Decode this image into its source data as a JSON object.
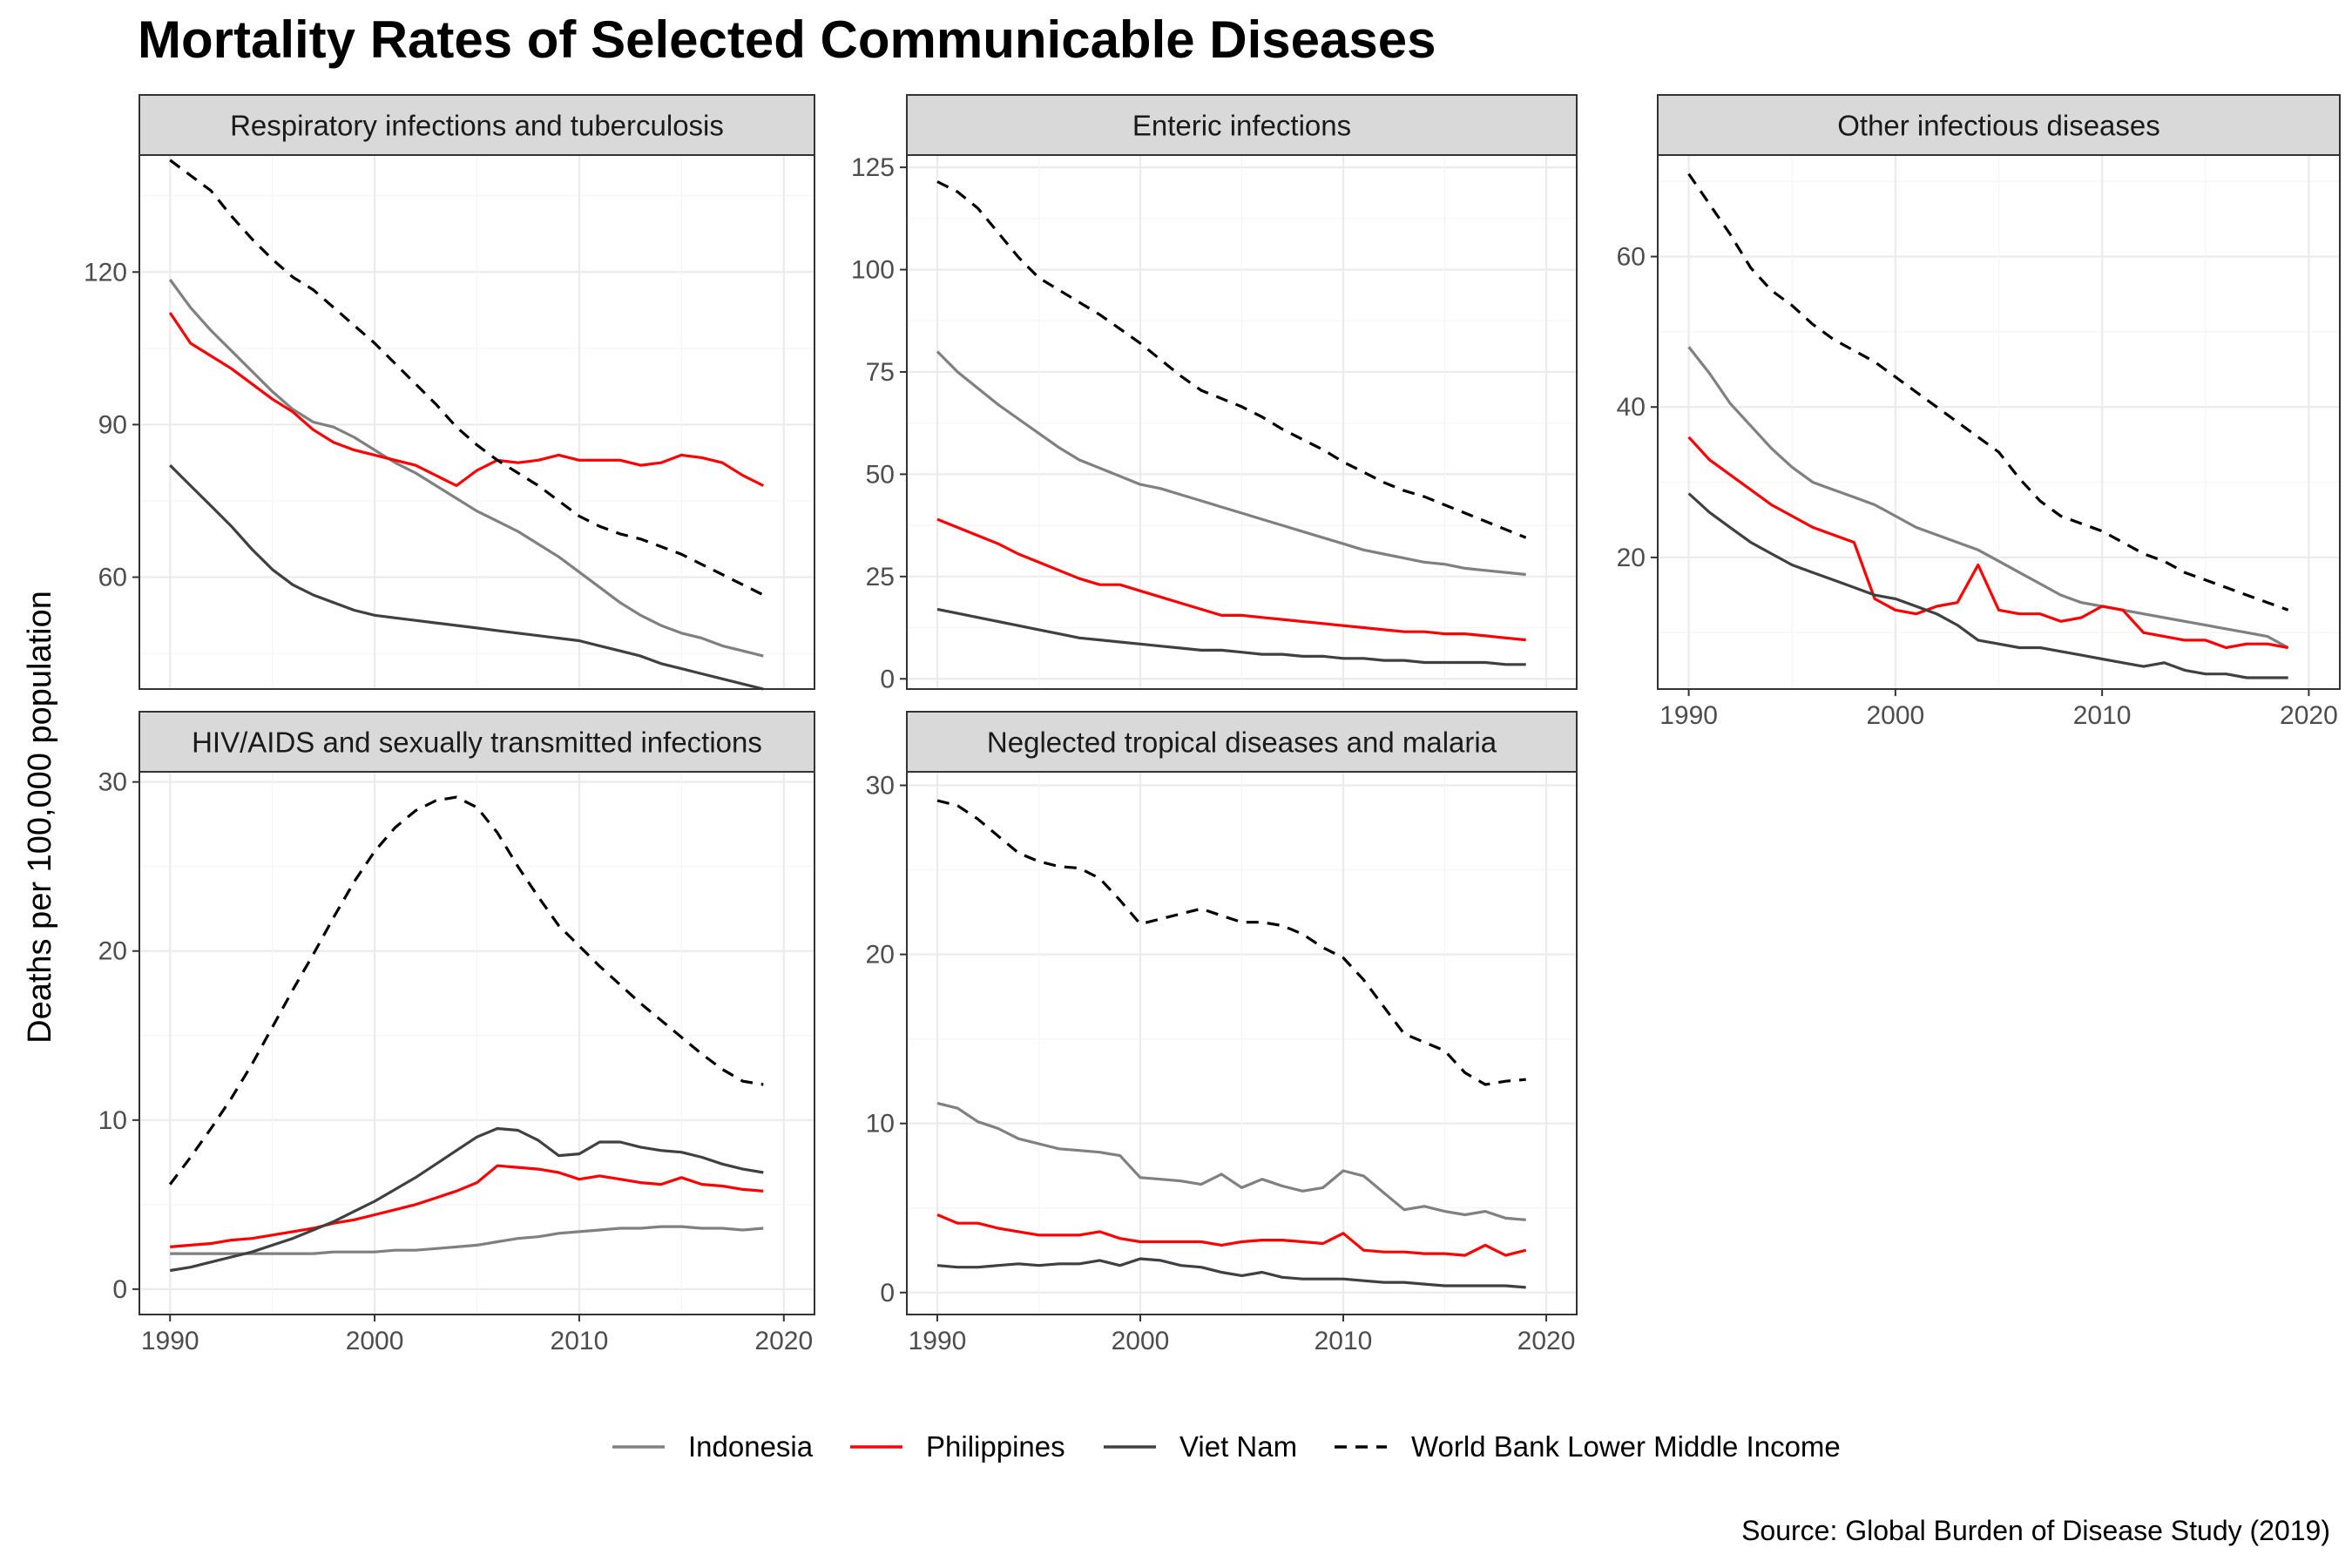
{
  "title": "Mortality Rates of Selected Communicable Diseases",
  "ylabel": "Deaths per 100,000 population",
  "caption": "Source: Global Burden of Disease Study (2019)",
  "colors": {
    "Indonesia": "#808080",
    "Philippines": "#ff0000",
    "Viet Nam": "#404040",
    "World Bank Lower Middle Income": "#000000"
  },
  "legend": [
    {
      "label": "Indonesia",
      "style": "solid"
    },
    {
      "label": "Philippines",
      "style": "solid"
    },
    {
      "label": "Viet Nam",
      "style": "solid"
    },
    {
      "label": "World Bank Lower Middle Income",
      "style": "dashed"
    }
  ],
  "chart_data": [
    {
      "type": "line",
      "title": "Respiratory infections and tuberculosis",
      "x_ticks": [
        "1990",
        "2000",
        "2010",
        "2020"
      ],
      "xlim": [
        1988.5,
        2021.5
      ],
      "ylim": [
        38,
        143
      ],
      "y_ticks": [
        60,
        90,
        120
      ],
      "grid": true,
      "x": [
        1990,
        1991,
        1992,
        1993,
        1994,
        1995,
        1996,
        1997,
        1998,
        1999,
        2000,
        2001,
        2002,
        2003,
        2004,
        2005,
        2006,
        2007,
        2008,
        2009,
        2010,
        2011,
        2012,
        2013,
        2014,
        2015,
        2016,
        2017,
        2018,
        2019
      ],
      "series": [
        {
          "name": "Indonesia",
          "values": [
            118.5,
            113,
            108.5,
            104.5,
            100.5,
            96.5,
            93,
            90.5,
            89.5,
            87.5,
            85,
            82.5,
            80.5,
            78,
            75.5,
            73,
            71,
            69,
            66.5,
            64,
            61,
            58,
            55,
            52.5,
            50.5,
            49,
            48,
            46.5,
            45.5,
            44.5
          ]
        },
        {
          "name": "Philippines",
          "values": [
            112,
            106,
            103.5,
            101,
            98,
            95,
            92.5,
            89,
            86.5,
            85,
            84,
            83,
            82,
            80,
            78,
            81,
            83,
            82.5,
            83,
            84,
            83,
            83,
            83,
            82,
            82.5,
            84,
            83.5,
            82.5,
            80,
            78
          ]
        },
        {
          "name": "Viet Nam",
          "values": [
            82,
            78,
            74,
            70,
            65.5,
            61.5,
            58.5,
            56.5,
            55,
            53.5,
            52.5,
            52,
            51.5,
            51,
            50.5,
            50,
            49.5,
            49,
            48.5,
            48,
            47.5,
            46.5,
            45.5,
            44.5,
            43,
            42,
            41,
            40,
            39,
            38
          ]
        },
        {
          "name": "World Bank Lower Middle Income",
          "values": [
            142,
            139,
            136,
            131,
            126.5,
            122.5,
            119,
            116.5,
            113,
            109.5,
            106,
            102,
            98,
            94,
            89.5,
            86,
            83,
            80.5,
            78,
            75,
            72,
            70,
            68.5,
            67.5,
            66,
            64.5,
            62.5,
            60.5,
            58.5,
            56.5
          ]
        }
      ]
    },
    {
      "type": "line",
      "title": "Enteric infections",
      "x_ticks": [
        "1990",
        "2000",
        "2010",
        "2020"
      ],
      "xlim": [
        1988.5,
        2021.5
      ],
      "ylim": [
        -2.5,
        128
      ],
      "y_ticks": [
        0,
        25,
        50,
        75,
        100,
        125
      ],
      "grid": true,
      "x": [
        1990,
        1991,
        1992,
        1993,
        1994,
        1995,
        1996,
        1997,
        1998,
        1999,
        2000,
        2001,
        2002,
        2003,
        2004,
        2005,
        2006,
        2007,
        2008,
        2009,
        2010,
        2011,
        2012,
        2013,
        2014,
        2015,
        2016,
        2017,
        2018,
        2019
      ],
      "series": [
        {
          "name": "Indonesia",
          "values": [
            80,
            75,
            71,
            67,
            63.5,
            60,
            56.5,
            53.5,
            51.5,
            49.5,
            47.5,
            46.5,
            45,
            43.5,
            42,
            40.5,
            39,
            37.5,
            36,
            34.5,
            33,
            31.5,
            30.5,
            29.5,
            28.5,
            28,
            27,
            26.5,
            26,
            25.5
          ]
        },
        {
          "name": "Philippines",
          "values": [
            39,
            37,
            35,
            33,
            30.5,
            28.5,
            26.5,
            24.5,
            23,
            23,
            21.5,
            20,
            18.5,
            17,
            15.5,
            15.5,
            15,
            14.5,
            14,
            13.5,
            13,
            12.5,
            12,
            11.5,
            11.5,
            11,
            11,
            10.5,
            10,
            9.5
          ]
        },
        {
          "name": "Viet Nam",
          "values": [
            17,
            16,
            15,
            14,
            13,
            12,
            11,
            10,
            9.5,
            9,
            8.5,
            8,
            7.5,
            7,
            7,
            6.5,
            6,
            6,
            5.5,
            5.5,
            5,
            5,
            4.5,
            4.5,
            4,
            4,
            4,
            4,
            3.5,
            3.5
          ]
        },
        {
          "name": "World Bank Lower Middle Income",
          "values": [
            121.5,
            119,
            115,
            109,
            103,
            98,
            95,
            92,
            89,
            85.5,
            82,
            78,
            74,
            70.5,
            68.5,
            66.5,
            64,
            61,
            58.5,
            56,
            53,
            50.5,
            48,
            46,
            44.5,
            42.5,
            40.5,
            38.5,
            36.5,
            34.5
          ]
        }
      ]
    },
    {
      "type": "line",
      "title": "Other infectious diseases",
      "x_ticks": [
        "1990",
        "2000",
        "2010",
        "2020"
      ],
      "xlim": [
        1988.5,
        2021.5
      ],
      "ylim": [
        2.5,
        73.5
      ],
      "y_ticks": [
        20,
        40,
        60
      ],
      "grid": true,
      "x": [
        1990,
        1991,
        1992,
        1993,
        1994,
        1995,
        1996,
        1997,
        1998,
        1999,
        2000,
        2001,
        2002,
        2003,
        2004,
        2005,
        2006,
        2007,
        2008,
        2009,
        2010,
        2011,
        2012,
        2013,
        2014,
        2015,
        2016,
        2017,
        2018,
        2019
      ],
      "series": [
        {
          "name": "Indonesia",
          "values": [
            48,
            44.5,
            40.5,
            37.5,
            34.5,
            32,
            30,
            29,
            28,
            27,
            25.5,
            24,
            23,
            22,
            21,
            19.5,
            18,
            16.5,
            15,
            14,
            13.5,
            13,
            12.5,
            12,
            11.5,
            11,
            10.5,
            10,
            9.5,
            8
          ]
        },
        {
          "name": "Philippines",
          "values": [
            36,
            33,
            31,
            29,
            27,
            25.5,
            24,
            23,
            22,
            14.5,
            13,
            12.5,
            13.5,
            14,
            19,
            13,
            12.5,
            12.5,
            11.5,
            12,
            13.5,
            13,
            10,
            9.5,
            9,
            9,
            8,
            8.5,
            8.5,
            8
          ]
        },
        {
          "name": "Viet Nam",
          "values": [
            28.5,
            26,
            24,
            22,
            20.5,
            19,
            18,
            17,
            16,
            15,
            14.5,
            13.5,
            12.5,
            11,
            9,
            8.5,
            8,
            8,
            7.5,
            7,
            6.5,
            6,
            5.5,
            6,
            5,
            4.5,
            4.5,
            4,
            4,
            4
          ]
        },
        {
          "name": "World Bank Lower Middle Income",
          "values": [
            71,
            67,
            63,
            58.5,
            55.5,
            53.5,
            51,
            49,
            47.5,
            46,
            44,
            42,
            40,
            38,
            36,
            34,
            30.5,
            27.5,
            25.5,
            24.5,
            23.5,
            22,
            20.5,
            19.5,
            18,
            17,
            16,
            15,
            14,
            13
          ]
        }
      ]
    },
    {
      "type": "line",
      "title": "HIV/AIDS and sexually transmitted infections",
      "x_ticks": [
        "1990",
        "2000",
        "2010",
        "2020"
      ],
      "xlim": [
        1988.5,
        2021.5
      ],
      "ylim": [
        -1.5,
        30.6
      ],
      "y_ticks": [
        0,
        10,
        20,
        30
      ],
      "grid": true,
      "x": [
        1990,
        1991,
        1992,
        1993,
        1994,
        1995,
        1996,
        1997,
        1998,
        1999,
        2000,
        2001,
        2002,
        2003,
        2004,
        2005,
        2006,
        2007,
        2008,
        2009,
        2010,
        2011,
        2012,
        2013,
        2014,
        2015,
        2016,
        2017,
        2018,
        2019
      ],
      "series": [
        {
          "name": "Indonesia",
          "values": [
            2.1,
            2.1,
            2.1,
            2.1,
            2.1,
            2.1,
            2.1,
            2.1,
            2.2,
            2.2,
            2.2,
            2.3,
            2.3,
            2.4,
            2.5,
            2.6,
            2.8,
            3.0,
            3.1,
            3.3,
            3.4,
            3.5,
            3.6,
            3.6,
            3.7,
            3.7,
            3.6,
            3.6,
            3.5,
            3.6
          ]
        },
        {
          "name": "Philippines",
          "values": [
            2.5,
            2.6,
            2.7,
            2.9,
            3.0,
            3.2,
            3.4,
            3.6,
            3.9,
            4.1,
            4.4,
            4.7,
            5.0,
            5.4,
            5.8,
            6.3,
            7.3,
            7.2,
            7.1,
            6.9,
            6.5,
            6.7,
            6.5,
            6.3,
            6.2,
            6.6,
            6.2,
            6.1,
            5.9,
            5.8
          ]
        },
        {
          "name": "Viet Nam",
          "values": [
            1.1,
            1.3,
            1.6,
            1.9,
            2.2,
            2.6,
            3.0,
            3.5,
            4.0,
            4.6,
            5.2,
            5.9,
            6.6,
            7.4,
            8.2,
            9.0,
            9.5,
            9.4,
            8.8,
            7.9,
            8.0,
            8.7,
            8.7,
            8.4,
            8.2,
            8.1,
            7.8,
            7.4,
            7.1,
            6.9
          ]
        },
        {
          "name": "World Bank Lower Middle Income",
          "values": [
            6.2,
            7.8,
            9.5,
            11.3,
            13.3,
            15.5,
            17.7,
            19.8,
            22.0,
            24.1,
            25.9,
            27.3,
            28.3,
            28.9,
            29.1,
            28.5,
            27.0,
            25.0,
            23.2,
            21.5,
            20.3,
            19.1,
            18.0,
            16.9,
            15.9,
            14.9,
            13.9,
            13.0,
            12.3,
            12.1
          ]
        }
      ]
    },
    {
      "type": "line",
      "title": "Neglected tropical diseases and malaria",
      "x_ticks": [
        "1990",
        "2000",
        "2010",
        "2020"
      ],
      "xlim": [
        1988.5,
        2021.5
      ],
      "ylim": [
        -1.3,
        30.8
      ],
      "y_ticks": [
        0,
        10,
        20,
        30
      ],
      "grid": true,
      "x": [
        1990,
        1991,
        1992,
        1993,
        1994,
        1995,
        1996,
        1997,
        1998,
        1999,
        2000,
        2001,
        2002,
        2003,
        2004,
        2005,
        2006,
        2007,
        2008,
        2009,
        2010,
        2011,
        2012,
        2013,
        2014,
        2015,
        2016,
        2017,
        2018,
        2019
      ],
      "series": [
        {
          "name": "Indonesia",
          "values": [
            11.2,
            10.9,
            10.1,
            9.7,
            9.1,
            8.8,
            8.5,
            8.4,
            8.3,
            8.1,
            6.8,
            6.7,
            6.6,
            6.4,
            7.0,
            6.2,
            6.7,
            6.3,
            6.0,
            6.2,
            7.2,
            6.9,
            5.9,
            4.9,
            5.1,
            4.8,
            4.6,
            4.8,
            4.4,
            4.3
          ]
        },
        {
          "name": "Philippines",
          "values": [
            4.6,
            4.1,
            4.1,
            3.8,
            3.6,
            3.4,
            3.4,
            3.4,
            3.6,
            3.2,
            3.0,
            3.0,
            3.0,
            3.0,
            2.8,
            3.0,
            3.1,
            3.1,
            3.0,
            2.9,
            3.5,
            2.5,
            2.4,
            2.4,
            2.3,
            2.3,
            2.2,
            2.8,
            2.2,
            2.5
          ]
        },
        {
          "name": "Viet Nam",
          "values": [
            1.6,
            1.5,
            1.5,
            1.6,
            1.7,
            1.6,
            1.7,
            1.7,
            1.9,
            1.6,
            2.0,
            1.9,
            1.6,
            1.5,
            1.2,
            1.0,
            1.2,
            0.9,
            0.8,
            0.8,
            0.8,
            0.7,
            0.6,
            0.6,
            0.5,
            0.4,
            0.4,
            0.4,
            0.4,
            0.3
          ]
        },
        {
          "name": "World Bank Lower Middle Income",
          "values": [
            29.1,
            28.8,
            28.0,
            27.0,
            26.0,
            25.5,
            25.2,
            25.1,
            24.5,
            23.2,
            21.8,
            22.1,
            22.4,
            22.7,
            22.3,
            21.9,
            21.9,
            21.7,
            21.2,
            20.4,
            19.8,
            18.5,
            16.9,
            15.3,
            14.8,
            14.3,
            13.0,
            12.3,
            12.5,
            12.6
          ]
        }
      ]
    }
  ]
}
